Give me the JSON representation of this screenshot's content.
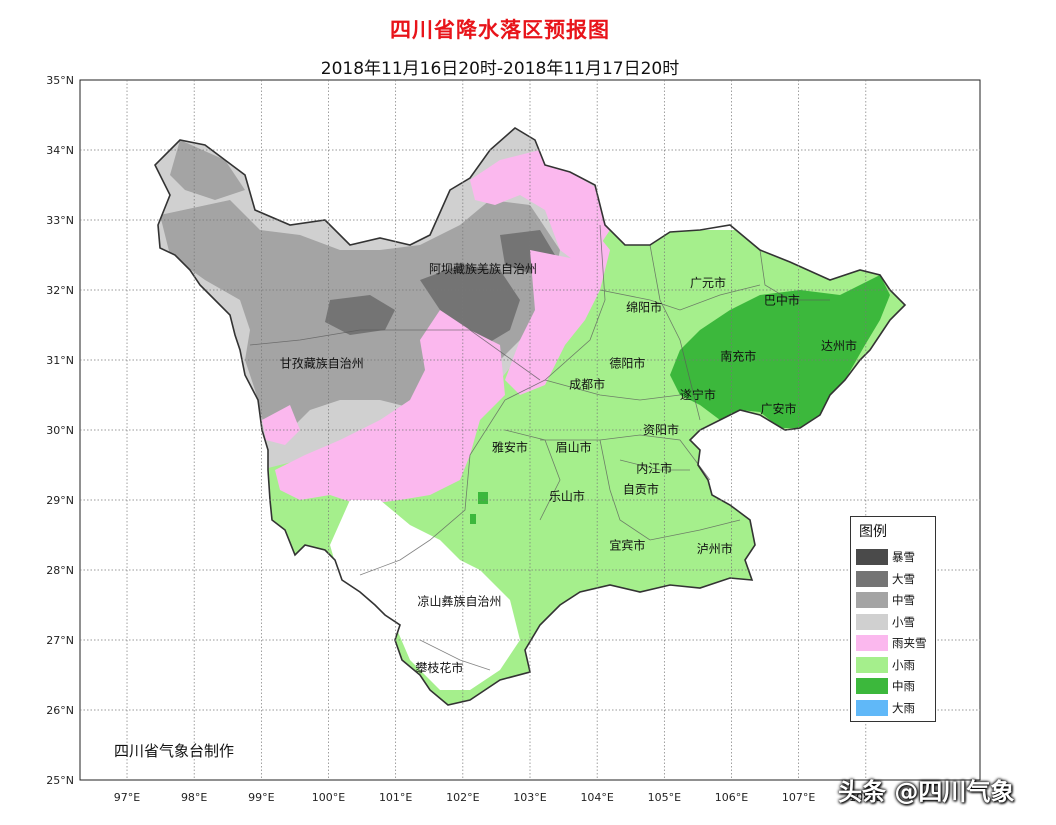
{
  "title": "四川省降水落区预报图",
  "subtitle": "2018年11月16日20时-2018年11月17日20时",
  "axes": {
    "lat_labels": [
      "35°N",
      "34°N",
      "33°N",
      "32°N",
      "31°N",
      "30°N",
      "29°N",
      "28°N",
      "27°N",
      "26°N",
      "25°N"
    ],
    "lon_labels": [
      "97°E",
      "98°E",
      "99°E",
      "100°E",
      "101°E",
      "102°E",
      "103°E",
      "104°E",
      "105°E",
      "106°E",
      "107°E",
      "108°E"
    ],
    "lat_range": [
      25,
      35
    ],
    "lon_range": [
      96.3,
      109.7
    ],
    "grid": true
  },
  "regions": [
    {
      "name": "阿坝藏族羌族自治州",
      "lon": 102.3,
      "lat": 32.3
    },
    {
      "name": "甘孜藏族自治州",
      "lon": 99.9,
      "lat": 30.95
    },
    {
      "name": "广元市",
      "lon": 105.65,
      "lat": 32.1
    },
    {
      "name": "巴中市",
      "lon": 106.75,
      "lat": 31.85
    },
    {
      "name": "绵阳市",
      "lon": 104.7,
      "lat": 31.75
    },
    {
      "name": "达州市",
      "lon": 107.6,
      "lat": 31.2
    },
    {
      "name": "南充市",
      "lon": 106.1,
      "lat": 31.05
    },
    {
      "name": "德阳市",
      "lon": 104.45,
      "lat": 30.95
    },
    {
      "name": "成都市",
      "lon": 103.85,
      "lat": 30.65
    },
    {
      "name": "遂宁市",
      "lon": 105.5,
      "lat": 30.5
    },
    {
      "name": "广安市",
      "lon": 106.7,
      "lat": 30.3
    },
    {
      "name": "资阳市",
      "lon": 104.95,
      "lat": 30.0
    },
    {
      "name": "雅安市",
      "lon": 102.7,
      "lat": 29.75
    },
    {
      "name": "眉山市",
      "lon": 103.65,
      "lat": 29.75
    },
    {
      "name": "内江市",
      "lon": 104.85,
      "lat": 29.45
    },
    {
      "name": "自贡市",
      "lon": 104.65,
      "lat": 29.15
    },
    {
      "name": "乐山市",
      "lon": 103.55,
      "lat": 29.05
    },
    {
      "name": "宜宾市",
      "lon": 104.45,
      "lat": 28.35
    },
    {
      "name": "泸州市",
      "lon": 105.75,
      "lat": 28.3
    },
    {
      "name": "凉山彝族自治州",
      "lon": 101.95,
      "lat": 27.55
    },
    {
      "name": "攀枝花市",
      "lon": 101.65,
      "lat": 26.6
    }
  ],
  "legend": {
    "title": "图例",
    "items": [
      {
        "label": "暴雪",
        "color": "#4a4a4a"
      },
      {
        "label": "大雪",
        "color": "#747474"
      },
      {
        "label": "中雪",
        "color": "#a4a4a4"
      },
      {
        "label": "小雪",
        "color": "#d0d0d0"
      },
      {
        "label": "雨夹雪",
        "color": "#fbb8ee"
      },
      {
        "label": "小雨",
        "color": "#a5ef8c"
      },
      {
        "label": "中雨",
        "color": "#3cb83c"
      },
      {
        "label": "大雨",
        "color": "#60b8f8"
      }
    ]
  },
  "producer": "四川省气象台制作",
  "watermark": "头条 @四川气象"
}
